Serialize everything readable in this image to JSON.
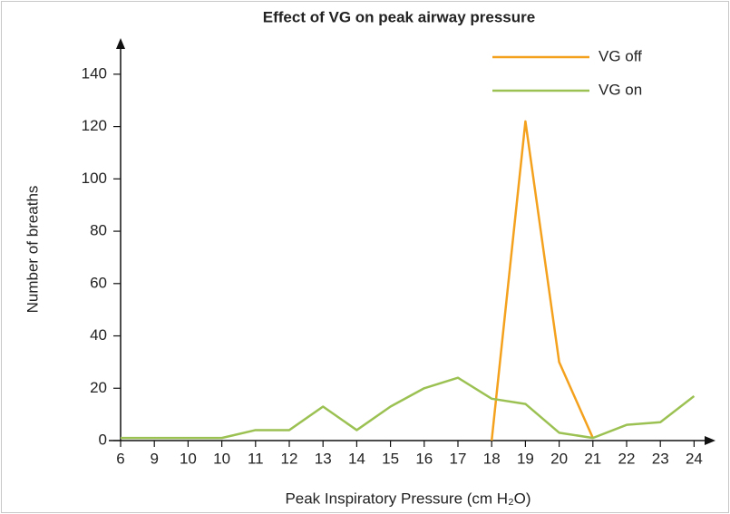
{
  "chart_data": {
    "type": "line",
    "title": "Effect of VG on peak airway pressure",
    "x_label": "Peak Inspiratory Pressure (cm H₂O)",
    "y_label": "Number of breaths",
    "categories": [
      "6",
      "9",
      "10",
      "10",
      "11",
      "12",
      "13",
      "14",
      "15",
      "16",
      "17",
      "18",
      "19",
      "20",
      "21",
      "22",
      "23",
      "24"
    ],
    "series": [
      {
        "name": "VG off",
        "color": "#f4a11e",
        "values": [
          null,
          null,
          null,
          null,
          null,
          null,
          null,
          null,
          null,
          null,
          null,
          0,
          122,
          30,
          1,
          null,
          null,
          null
        ]
      },
      {
        "name": "VG on",
        "color": "#9cc153",
        "values": [
          1,
          1,
          1,
          1,
          4,
          4,
          13,
          4,
          13,
          20,
          24,
          16,
          14,
          3,
          1,
          6,
          7,
          17
        ]
      }
    ],
    "ylim": [
      0,
      150
    ],
    "yticks": [
      0,
      20,
      40,
      60,
      80,
      100,
      120,
      140
    ],
    "grid": false,
    "legend": "upper right"
  }
}
